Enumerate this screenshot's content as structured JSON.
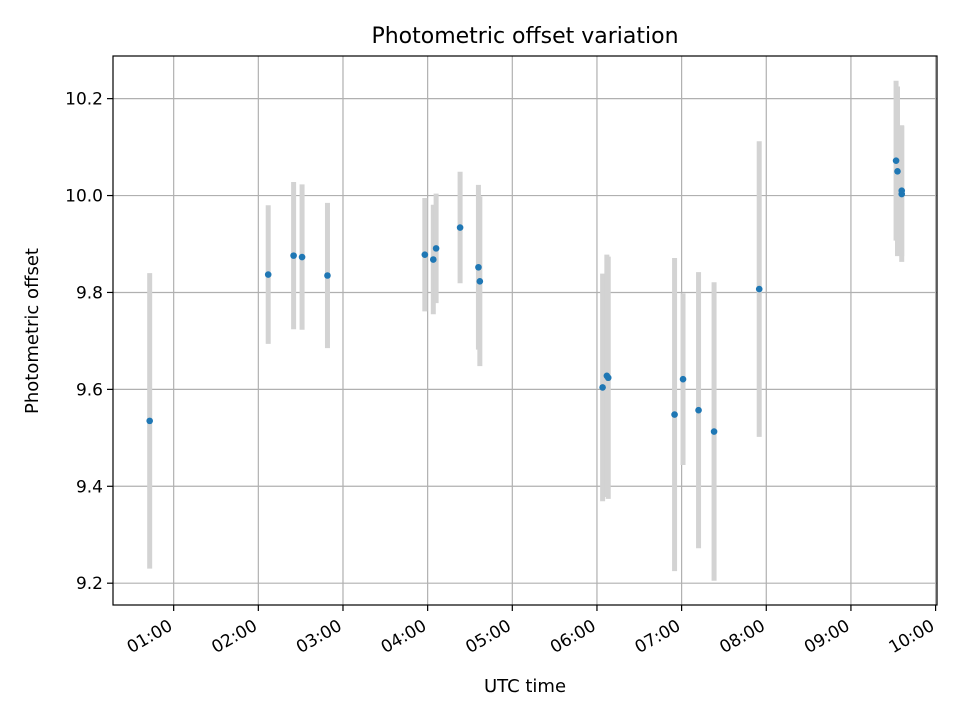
{
  "chart_data": {
    "type": "scatter",
    "title": "Photometric offset variation",
    "xlabel": "UTC time",
    "ylabel": "Photometric offset",
    "x_format": "HH:MM",
    "xlim": [
      "00:17",
      "10:01"
    ],
    "ylim": [
      9.155,
      10.288
    ],
    "x_ticks": [
      "01:00",
      "02:00",
      "03:00",
      "04:00",
      "05:00",
      "06:00",
      "07:00",
      "08:00",
      "09:00",
      "10:00"
    ],
    "y_ticks": [
      9.2,
      9.4,
      9.6,
      9.8,
      10.0,
      10.2
    ],
    "y_tick_labels": [
      "9.2",
      "9.4",
      "9.6",
      "9.8",
      "10.0",
      "10.2"
    ],
    "grid": true,
    "colors": {
      "point": "#1f77b4",
      "errorbar": "#d3d3d3",
      "grid": "#b0b0b0"
    },
    "points": [
      {
        "time": "00:43",
        "y": 9.535,
        "err": 0.305
      },
      {
        "time": "02:07",
        "y": 9.837,
        "err": 0.143
      },
      {
        "time": "02:25",
        "y": 9.876,
        "err": 0.152
      },
      {
        "time": "02:31",
        "y": 9.873,
        "err": 0.15
      },
      {
        "time": "02:49",
        "y": 9.835,
        "err": 0.15
      },
      {
        "time": "03:58",
        "y": 9.878,
        "err": 0.117
      },
      {
        "time": "04:04",
        "y": 9.868,
        "err": 0.113
      },
      {
        "time": "04:06",
        "y": 9.891,
        "err": 0.113
      },
      {
        "time": "04:23",
        "y": 9.934,
        "err": 0.115
      },
      {
        "time": "04:36",
        "y": 9.852,
        "err": 0.17
      },
      {
        "time": "04:37",
        "y": 9.823,
        "err": 0.175
      },
      {
        "time": "06:04",
        "y": 9.604,
        "err": 0.235
      },
      {
        "time": "06:07",
        "y": 9.628,
        "err": 0.25
      },
      {
        "time": "06:08",
        "y": 9.624,
        "err": 0.25
      },
      {
        "time": "06:55",
        "y": 9.548,
        "err": 0.323
      },
      {
        "time": "07:01",
        "y": 9.621,
        "err": 0.177
      },
      {
        "time": "07:12",
        "y": 9.557,
        "err": 0.285
      },
      {
        "time": "07:23",
        "y": 9.513,
        "err": 0.308
      },
      {
        "time": "07:55",
        "y": 9.807,
        "err": 0.305
      },
      {
        "time": "09:32",
        "y": 10.072,
        "err": 0.165
      },
      {
        "time": "09:33",
        "y": 10.05,
        "err": 0.175
      },
      {
        "time": "09:36",
        "y": 10.003,
        "err": 0.14
      },
      {
        "time": "09:36",
        "y": 10.01,
        "err": 0.135
      }
    ]
  }
}
